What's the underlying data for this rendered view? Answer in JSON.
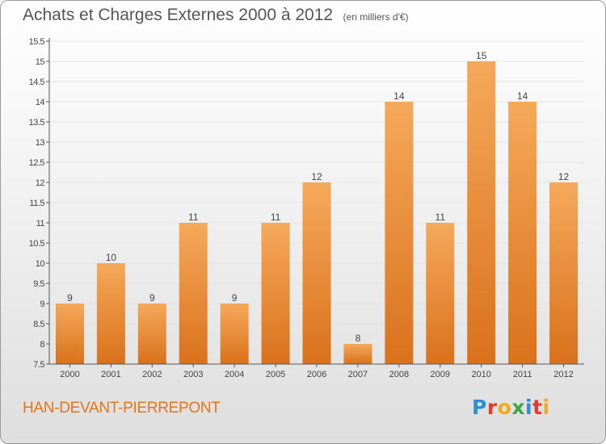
{
  "title": "Achats et Charges Externes 2000 à 2012",
  "unit": "(en milliers d'€)",
  "commune": "HAN-DEVANT-PIERREPONT",
  "brand": {
    "letters": [
      "P",
      "r",
      "o",
      "x",
      "i",
      "t",
      "i"
    ],
    "colors": [
      "#2b8fd6",
      "#e53a2e",
      "#f2a91b",
      "#3aa648",
      "#2b8fd6",
      "#e53a2e",
      "#f2a91b"
    ]
  },
  "colors": {
    "bar_light": "#f5a95a",
    "bar_dark": "#d9711b",
    "grid": "#e4e4e4",
    "axis": "#555555",
    "text": "#444444",
    "accent": "#e4761a"
  },
  "chart_data": {
    "type": "bar",
    "categories": [
      "2000",
      "2001",
      "2002",
      "2003",
      "2004",
      "2005",
      "2006",
      "2007",
      "2008",
      "2009",
      "2010",
      "2011",
      "2012"
    ],
    "values": [
      9,
      10,
      9,
      11,
      9,
      11,
      12,
      8,
      14,
      11,
      15,
      14,
      12
    ],
    "value_labels": [
      "9",
      "10",
      "9",
      "11",
      "9",
      "11",
      "12",
      "8",
      "14",
      "11",
      "15",
      "14",
      "12"
    ],
    "ylim": [
      7.5,
      15.5
    ],
    "yticks": [
      7.5,
      8,
      8.5,
      9,
      9.5,
      10,
      10.5,
      11,
      11.5,
      12,
      12.5,
      13,
      13.5,
      14,
      14.5,
      15,
      15.5
    ],
    "ytick_labels": [
      "7.5",
      "8",
      "8.5",
      "9",
      "9.5",
      "10",
      "10.5",
      "11",
      "11.5",
      "12",
      "12.5",
      "13",
      "13.5",
      "14",
      "14.5",
      "15",
      "15.5"
    ],
    "grid": true,
    "xlabel": "",
    "ylabel": ""
  }
}
